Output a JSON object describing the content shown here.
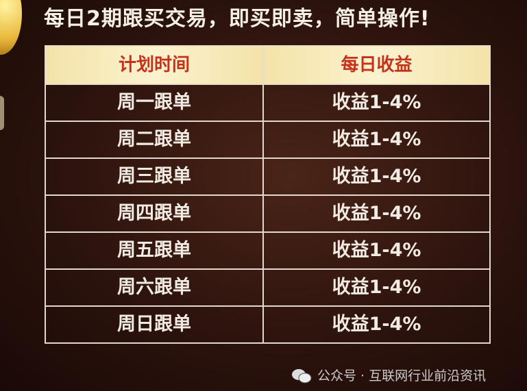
{
  "headline": "每日2期跟买交易，即买即卖，简单操作!",
  "table": {
    "headers": [
      "计划时间",
      "每日收益"
    ],
    "rows": [
      [
        "周一跟单",
        "收益1-4%"
      ],
      [
        "周二跟单",
        "收益1-4%"
      ],
      [
        "周三跟单",
        "收益1-4%"
      ],
      [
        "周四跟单",
        "收益1-4%"
      ],
      [
        "周五跟单",
        "收益1-4%"
      ],
      [
        "周六跟单",
        "收益1-4%"
      ],
      [
        "周日跟单",
        "收益1-4%"
      ]
    ]
  },
  "watermark": {
    "icon": "wechat-icon",
    "text": "公众号 · 互联网行业前沿资讯"
  },
  "colors": {
    "header_text": "#c5321c",
    "header_bg": "#f8ecc0",
    "background": "#2c130d"
  }
}
